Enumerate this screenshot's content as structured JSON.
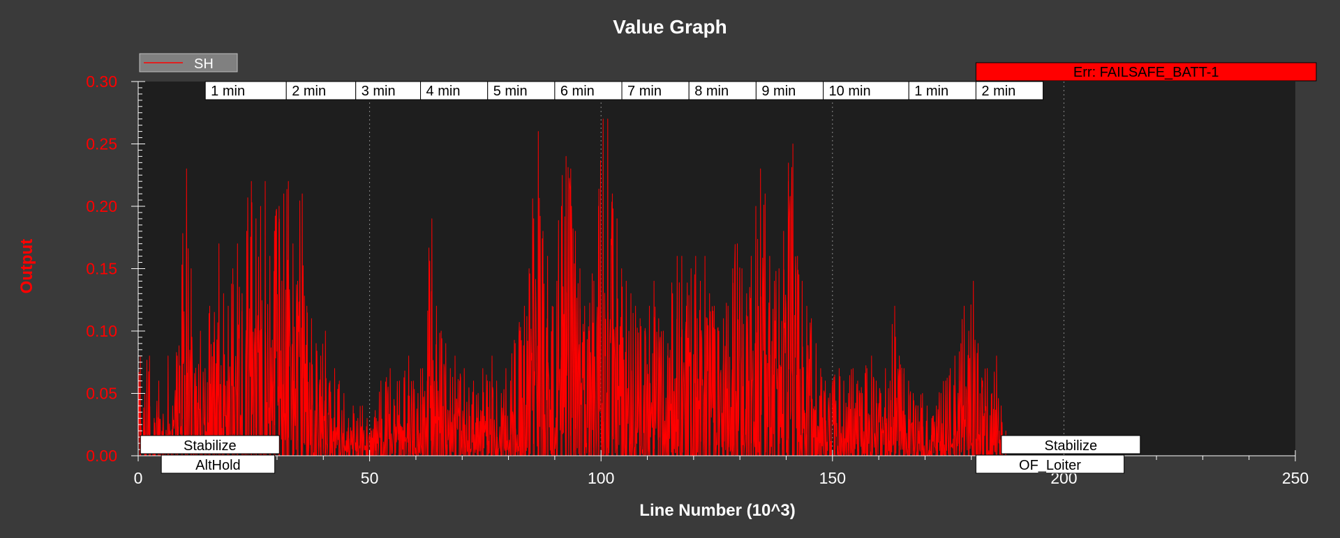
{
  "chart_data": {
    "type": "line",
    "title": "Value Graph",
    "xlabel": "Line Number (10^3)",
    "ylabel": "Output",
    "xlim": [
      0,
      250
    ],
    "ylim": [
      0,
      0.3
    ],
    "x_ticks": [
      "0",
      "50",
      "100",
      "150",
      "200",
      "250"
    ],
    "y_ticks": [
      "0.00",
      "0.05",
      "0.10",
      "0.15",
      "0.20",
      "0.25",
      "0.30"
    ],
    "grid": false,
    "legend": {
      "position": "top-left",
      "entries": [
        "SH"
      ]
    },
    "series": [
      {
        "name": "SH",
        "color": "#ff0000",
        "peaks": [
          [
            0,
            0.08
          ],
          [
            1,
            0.05
          ],
          [
            2,
            0.08
          ],
          [
            3,
            0.03
          ],
          [
            4,
            0.06
          ],
          [
            5,
            0.02
          ],
          [
            6,
            0.08
          ],
          [
            7,
            0.04
          ],
          [
            8,
            0.08
          ],
          [
            9,
            0.09
          ],
          [
            10,
            0.23
          ],
          [
            11,
            0.15
          ],
          [
            12,
            0.06
          ],
          [
            13,
            0.1
          ],
          [
            14,
            0.07
          ],
          [
            15,
            0.12
          ],
          [
            16,
            0.1
          ],
          [
            17,
            0.17
          ],
          [
            18,
            0.13
          ],
          [
            19,
            0.12
          ],
          [
            20,
            0.15
          ],
          [
            21,
            0.17
          ],
          [
            22,
            0.13
          ],
          [
            23,
            0.18
          ],
          [
            24,
            0.22
          ],
          [
            25,
            0.19
          ],
          [
            26,
            0.2
          ],
          [
            27,
            0.22
          ],
          [
            28,
            0.16
          ],
          [
            29,
            0.18
          ],
          [
            30,
            0.2
          ],
          [
            31,
            0.21
          ],
          [
            32,
            0.22
          ],
          [
            33,
            0.17
          ],
          [
            34,
            0.14
          ],
          [
            35,
            0.21
          ],
          [
            36,
            0.12
          ],
          [
            37,
            0.11
          ],
          [
            38,
            0.09
          ],
          [
            39,
            0.08
          ],
          [
            40,
            0.1
          ],
          [
            41,
            0.06
          ],
          [
            42,
            0.07
          ],
          [
            43,
            0.06
          ],
          [
            44,
            0.05
          ],
          [
            45,
            0.03
          ],
          [
            46,
            0.04
          ],
          [
            47,
            0.03
          ],
          [
            48,
            0.04
          ],
          [
            49,
            0.03
          ],
          [
            50,
            0.02
          ],
          [
            51,
            0.03
          ],
          [
            52,
            0.06
          ],
          [
            53,
            0.05
          ],
          [
            54,
            0.07
          ],
          [
            55,
            0.04
          ],
          [
            56,
            0.06
          ],
          [
            57,
            0.05
          ],
          [
            58,
            0.08
          ],
          [
            59,
            0.06
          ],
          [
            60,
            0.05
          ],
          [
            61,
            0.07
          ],
          [
            62,
            0.06
          ],
          [
            63,
            0.19
          ],
          [
            64,
            0.12
          ],
          [
            65,
            0.1
          ],
          [
            66,
            0.09
          ],
          [
            67,
            0.07
          ],
          [
            68,
            0.08
          ],
          [
            69,
            0.06
          ],
          [
            70,
            0.07
          ],
          [
            71,
            0.05
          ],
          [
            72,
            0.06
          ],
          [
            73,
            0.05
          ],
          [
            74,
            0.07
          ],
          [
            75,
            0.06
          ],
          [
            76,
            0.08
          ],
          [
            77,
            0.06
          ],
          [
            78,
            0.05
          ],
          [
            79,
            0.07
          ],
          [
            80,
            0.06
          ],
          [
            81,
            0.09
          ],
          [
            82,
            0.1
          ],
          [
            83,
            0.12
          ],
          [
            84,
            0.15
          ],
          [
            85,
            0.19
          ],
          [
            86,
            0.26
          ],
          [
            87,
            0.18
          ],
          [
            88,
            0.16
          ],
          [
            89,
            0.12
          ],
          [
            90,
            0.14
          ],
          [
            91,
            0.2
          ],
          [
            92,
            0.24
          ],
          [
            93,
            0.23
          ],
          [
            94,
            0.18
          ],
          [
            95,
            0.15
          ],
          [
            96,
            0.12
          ],
          [
            97,
            0.1
          ],
          [
            98,
            0.14
          ],
          [
            99,
            0.2
          ],
          [
            100,
            0.27
          ],
          [
            101,
            0.27
          ],
          [
            102,
            0.21
          ],
          [
            103,
            0.19
          ],
          [
            104,
            0.15
          ],
          [
            105,
            0.14
          ],
          [
            106,
            0.13
          ],
          [
            107,
            0.12
          ],
          [
            108,
            0.11
          ],
          [
            109,
            0.1
          ],
          [
            110,
            0.12
          ],
          [
            111,
            0.14
          ],
          [
            112,
            0.11
          ],
          [
            113,
            0.1
          ],
          [
            114,
            0.09
          ],
          [
            115,
            0.13
          ],
          [
            116,
            0.16
          ],
          [
            117,
            0.16
          ],
          [
            118,
            0.12
          ],
          [
            119,
            0.15
          ],
          [
            120,
            0.16
          ],
          [
            121,
            0.14
          ],
          [
            122,
            0.16
          ],
          [
            123,
            0.13
          ],
          [
            124,
            0.12
          ],
          [
            125,
            0.1
          ],
          [
            126,
            0.11
          ],
          [
            127,
            0.12
          ],
          [
            128,
            0.15
          ],
          [
            129,
            0.17
          ],
          [
            130,
            0.15
          ],
          [
            131,
            0.13
          ],
          [
            132,
            0.16
          ],
          [
            133,
            0.2
          ],
          [
            134,
            0.23
          ],
          [
            135,
            0.21
          ],
          [
            136,
            0.16
          ],
          [
            137,
            0.14
          ],
          [
            138,
            0.15
          ],
          [
            139,
            0.18
          ],
          [
            140,
            0.22
          ],
          [
            141,
            0.25
          ],
          [
            142,
            0.16
          ],
          [
            143,
            0.14
          ],
          [
            144,
            0.12
          ],
          [
            145,
            0.11
          ],
          [
            146,
            0.09
          ],
          [
            147,
            0.07
          ],
          [
            148,
            0.06
          ],
          [
            149,
            0.05
          ],
          [
            150,
            0.06
          ],
          [
            151,
            0.07
          ],
          [
            152,
            0.06
          ],
          [
            153,
            0.05
          ],
          [
            154,
            0.07
          ],
          [
            155,
            0.06
          ],
          [
            156,
            0.05
          ],
          [
            157,
            0.07
          ],
          [
            158,
            0.08
          ],
          [
            159,
            0.06
          ],
          [
            160,
            0.05
          ],
          [
            161,
            0.07
          ],
          [
            162,
            0.06
          ],
          [
            163,
            0.12
          ],
          [
            164,
            0.08
          ],
          [
            165,
            0.07
          ],
          [
            166,
            0.06
          ],
          [
            167,
            0.05
          ],
          [
            168,
            0.04
          ],
          [
            169,
            0.05
          ],
          [
            170,
            0.04
          ],
          [
            171,
            0.03
          ],
          [
            172,
            0.04
          ],
          [
            173,
            0.05
          ],
          [
            174,
            0.06
          ],
          [
            175,
            0.07
          ],
          [
            176,
            0.08
          ],
          [
            177,
            0.06
          ],
          [
            178,
            0.12
          ],
          [
            179,
            0.1
          ],
          [
            180,
            0.14
          ],
          [
            181,
            0.09
          ],
          [
            182,
            0.06
          ],
          [
            183,
            0.07
          ],
          [
            184,
            0.05
          ],
          [
            185,
            0.08
          ],
          [
            186,
            0.04
          ],
          [
            187,
            0.02
          ]
        ],
        "data_end": 187
      }
    ],
    "flight_modes": {
      "top_row": [
        {
          "label": "Stabilize",
          "start": 0.5,
          "end": 30.5
        },
        {
          "label": "Stabilize",
          "start": 186.5,
          "end": 216.5
        }
      ],
      "bottom_row": [
        {
          "label": "AltHold",
          "start": 5,
          "end": 29.5
        },
        {
          "label": "OF_Loiter",
          "start": 181,
          "end": 213
        }
      ]
    },
    "time_markers": [
      {
        "label": "1 min",
        "start": 14.5,
        "end": 32
      },
      {
        "label": "2 min",
        "start": 32,
        "end": 47
      },
      {
        "label": "3 min",
        "start": 47,
        "end": 61
      },
      {
        "label": "4 min",
        "start": 61,
        "end": 75.5
      },
      {
        "label": "5 min",
        "start": 75.5,
        "end": 90
      },
      {
        "label": "6 min",
        "start": 90,
        "end": 104.5
      },
      {
        "label": "7 min",
        "start": 104.5,
        "end": 119
      },
      {
        "label": "8 min",
        "start": 119,
        "end": 133.5
      },
      {
        "label": "9 min",
        "start": 133.5,
        "end": 148
      },
      {
        "label": "10 min",
        "start": 148,
        "end": 166.5
      },
      {
        "label": "1 min",
        "start": 166.5,
        "end": 181
      },
      {
        "label": "2 min",
        "start": 181,
        "end": 195.5
      }
    ],
    "error_banner": {
      "label": "Err: FAILSAFE_BATT-1",
      "start": 181,
      "color": "#ff0000"
    },
    "vertical_markers": [
      50,
      100,
      150,
      200
    ]
  }
}
